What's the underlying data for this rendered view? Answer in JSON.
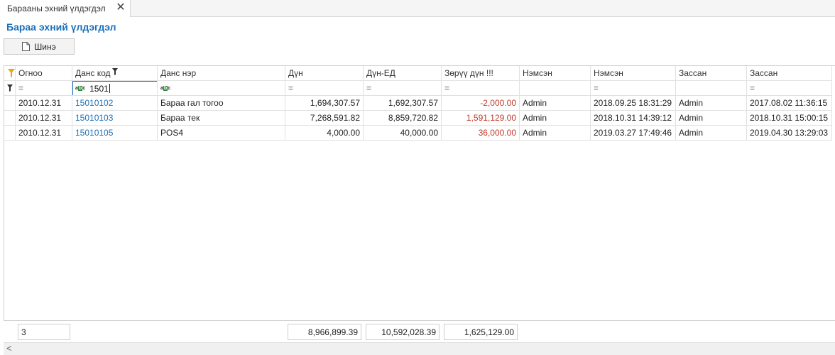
{
  "tab": {
    "label": "Барааны эхний үлдэгдэл",
    "close_glyph": "✕"
  },
  "page": {
    "title": "Бараа эхний үлдэгдэл"
  },
  "toolbar": {
    "new_label": "Шинэ",
    "new_icon": "document-icon"
  },
  "grid": {
    "columns": [
      "Огноо",
      "Данс код",
      "Данс нэр",
      "Дүн",
      "Дүн-ЕД",
      "Зөрүү дүн !!!",
      "Нэмсэн",
      "Нэмсэн",
      "Зассан",
      "Зассан"
    ],
    "filter": {
      "operator_glyph": "=",
      "text_badge": "abc",
      "account_code_value": "1501"
    },
    "rows": [
      {
        "date": "2010.12.31",
        "code": "15010102",
        "name": "Бараа гал тогоо",
        "amount": "1,694,307.57",
        "amount_ed": "1,692,307.57",
        "diff": "-2,000.00",
        "added_by": "Admin",
        "added_at": "2018.09.25 18:31:29",
        "edited_by": "Admin",
        "edited_at": "2017.08.02 11:36:15"
      },
      {
        "date": "2010.12.31",
        "code": "15010103",
        "name": "Бараа тек",
        "amount": "7,268,591.82",
        "amount_ed": "8,859,720.82",
        "diff": "1,591,129.00",
        "added_by": "Admin",
        "added_at": "2018.10.31 14:39:12",
        "edited_by": "Admin",
        "edited_at": "2018.10.31 15:00:15"
      },
      {
        "date": "2010.12.31",
        "code": "15010105",
        "name": "POS4",
        "amount": "4,000.00",
        "amount_ed": "40,000.00",
        "diff": "36,000.00",
        "added_by": "Admin",
        "added_at": "2019.03.27 17:49:46",
        "edited_by": "Admin",
        "edited_at": "2019.04.30 13:29:03"
      }
    ]
  },
  "footer": {
    "count": "3",
    "sum_amount": "8,966,899.39",
    "sum_amount_ed": "10,592,028.39",
    "sum_diff": "1,625,129.00"
  },
  "scroll": {
    "left_glyph": "<"
  },
  "colors": {
    "title": "#1c6fb8",
    "link": "#1c6fb8",
    "negative": "#c0392b",
    "filter_funnel": "#f0a30a"
  }
}
